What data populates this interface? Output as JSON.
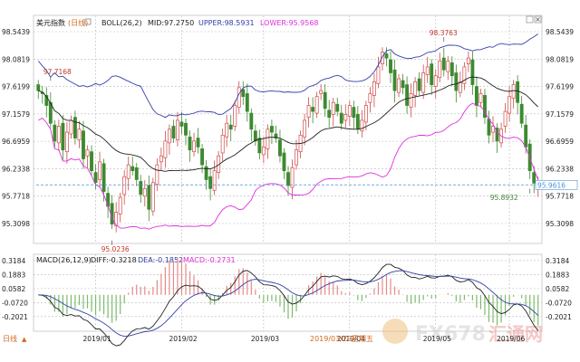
{
  "colors": {
    "candle_up": "#cf4a4a",
    "candle_down": "#3d8a30",
    "boll_mid": "#222222",
    "boll_upper": "#3340a8",
    "boll_lower": "#dd2fdd",
    "macd_diff": "#222222",
    "macd_dea": "#3340a8",
    "bar_pos": "#e38b8b",
    "bar_neg": "#7dbb6c",
    "last_price_line": "#4a90d8",
    "annotation": "#c0392b",
    "grid": "#b9b9b9"
  },
  "header": {
    "symbol": "美元指数",
    "period_tag": "(日线)",
    "boll_label": "BOLL(26,2)",
    "mid_text": "MID:97.2750",
    "upper_text": "UPPER:98.5931",
    "lower_text": "LOWER:95.9568"
  },
  "macd_header": {
    "label": "MACD(26,12,9)",
    "diff_text": "DIFF:-0.3218",
    "dea_text": "DEA:-0.1852",
    "macd_text": "MACD:-0.2731"
  },
  "footer": {
    "period_button": "日线",
    "period_arrow": "▲",
    "cursor_date": "2019/03/29",
    "cursor_weekday": "星期五"
  },
  "watermark": {
    "brand": "FX678",
    "cn": "汇通网"
  },
  "chart_data": [
    {
      "type": "candlestick",
      "title": "美元指数 (日线)",
      "y_axis_ticks_left": [
        "98.5439",
        "98.0819",
        "97.6199",
        "97.1579",
        "96.6959",
        "96.2338",
        "95.7718",
        "95.3098"
      ],
      "y_axis_ticks_right": [
        "98.5439",
        "98.0819",
        "97.6199",
        "97.1579",
        "96.6959",
        "96.2338",
        "95.7718",
        "95.3098"
      ],
      "x_axis_labels": [
        "2019/01",
        "2019/02",
        "2019/03",
        "2019/04",
        "2019/05",
        "2019/06"
      ],
      "ylim": [
        95.02,
        98.62
      ],
      "annotations": [
        {
          "label": "97.7168",
          "value": 97.7168
        },
        {
          "label": "98.3763",
          "value": 98.3763
        },
        {
          "label": "95.0236",
          "value": 95.0236
        },
        {
          "label": "95.8932",
          "value": 95.8932
        }
      ],
      "last_price": {
        "label": "95.9616",
        "value": 95.9616
      },
      "close": [
        97.55,
        97.5,
        97.3,
        97.0,
        96.7,
        96.95,
        96.55,
        96.85,
        97.05,
        96.75,
        96.9,
        96.4,
        96.55,
        96.2,
        96.0,
        96.35,
        95.85,
        95.6,
        95.3,
        95.5,
        95.75,
        96.1,
        96.3,
        96.2,
        96.05,
        95.8,
        95.9,
        95.55,
        96.0,
        96.3,
        96.45,
        96.7,
        96.9,
        96.75,
        97.05,
        96.95,
        96.8,
        96.55,
        96.7,
        96.6,
        96.3,
        96.05,
        95.9,
        96.2,
        96.45,
        96.8,
        97.0,
        96.9,
        97.3,
        97.6,
        97.45,
        97.2,
        96.9,
        96.7,
        96.5,
        96.6,
        96.9,
        96.85,
        96.75,
        96.45,
        96.2,
        95.95,
        96.25,
        96.55,
        96.8,
        97.05,
        97.3,
        97.2,
        97.45,
        97.55,
        97.25,
        97.1,
        97.35,
        97.2,
        97.0,
        97.15,
        97.3,
        97.1,
        96.9,
        97.05,
        97.3,
        97.5,
        97.7,
        97.95,
        98.2,
        98.1,
        97.85,
        97.55,
        97.75,
        97.6,
        97.3,
        97.5,
        97.7,
        97.55,
        97.85,
        97.95,
        97.65,
        97.8,
        98.05,
        97.9,
        98.05,
        97.8,
        97.55,
        97.7,
        97.95,
        98.1,
        97.65,
        97.3,
        97.5,
        97.1,
        96.8,
        96.95,
        96.7,
        96.9,
        97.2,
        97.45,
        97.65,
        97.35,
        97.0,
        96.6,
        96.2,
        95.99,
        95.9616
      ],
      "series": [
        {
          "name": "MID",
          "last": 97.275
        },
        {
          "name": "UPPER",
          "last": 98.5931
        },
        {
          "name": "LOWER",
          "last": 95.9568
        }
      ]
    },
    {
      "type": "macd",
      "title": "MACD(26,12,9)",
      "y_axis_ticks_left": [
        "0.3184",
        "0.1883",
        "0.0582",
        "-0.0720",
        "-0.2021"
      ],
      "y_axis_ticks_right": [
        "0.3184",
        "0.1883",
        "0.0582",
        "-0.0720",
        "-0.2021"
      ],
      "ylim": [
        -0.33,
        0.36
      ],
      "series": [
        {
          "name": "DIFF",
          "last": -0.3218
        },
        {
          "name": "DEA",
          "last": -0.1852
        },
        {
          "name": "MACD",
          "last": -0.2731
        }
      ]
    }
  ]
}
